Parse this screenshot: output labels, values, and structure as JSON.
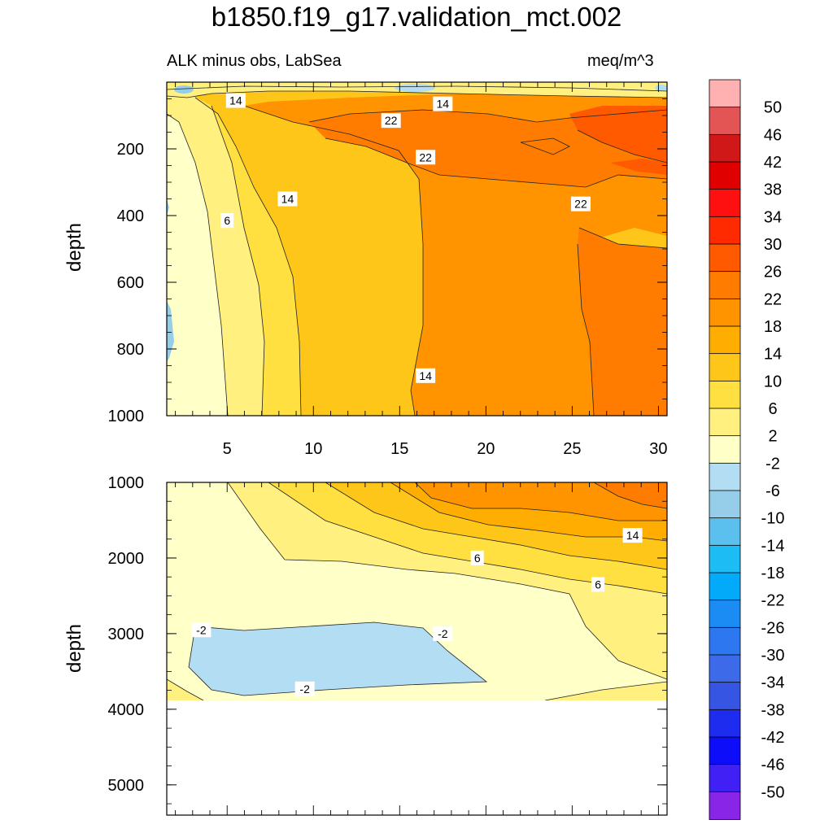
{
  "title": "b1850.f19_g17.validation_mct.002",
  "left_subtitle": "ALK minus obs, LabSea",
  "right_subtitle": "meq/m^3",
  "chart_data": [
    {
      "type": "contour",
      "panel": "upper",
      "xlabel": "",
      "ylabel": "depth",
      "xlim": [
        1.5,
        30.5
      ],
      "ylim": [
        1000,
        0
      ],
      "x_ticks": [
        5,
        10,
        15,
        20,
        25,
        30
      ],
      "y_ticks": [
        200,
        400,
        600,
        800,
        1000
      ],
      "contour_labels": [
        {
          "text": "14",
          "x": 5.5,
          "y": 55
        },
        {
          "text": "14",
          "x": 17.5,
          "y": 65
        },
        {
          "text": "22",
          "x": 14.5,
          "y": 115
        },
        {
          "text": "22",
          "x": 16.5,
          "y": 225
        },
        {
          "text": "22",
          "x": 25.5,
          "y": 365
        },
        {
          "text": "14",
          "x": 8.5,
          "y": 350
        },
        {
          "text": "6",
          "x": 5.0,
          "y": 415
        },
        {
          "text": "14",
          "x": 16.5,
          "y": 880
        }
      ]
    },
    {
      "type": "contour",
      "panel": "lower",
      "xlabel": "",
      "ylabel": "depth",
      "xlim": [
        1.5,
        30.5
      ],
      "ylim": [
        5400,
        1000
      ],
      "y_ticks": [
        1000,
        2000,
        3000,
        4000,
        5000
      ],
      "contour_labels": [
        {
          "text": "14",
          "x": 28.5,
          "y": 1700
        },
        {
          "text": "6",
          "x": 19.5,
          "y": 2000
        },
        {
          "text": "6",
          "x": 26.5,
          "y": 2350
        },
        {
          "text": "-2",
          "x": 3.5,
          "y": 2950
        },
        {
          "text": "-2",
          "x": 17.5,
          "y": 3000
        },
        {
          "text": "-2",
          "x": 9.5,
          "y": 3730
        }
      ]
    }
  ],
  "colorbar": {
    "labels": [
      "50",
      "46",
      "42",
      "38",
      "34",
      "30",
      "26",
      "22",
      "18",
      "14",
      "10",
      "6",
      "2",
      "-2",
      "-6",
      "-10",
      "-14",
      "-18",
      "-22",
      "-26",
      "-30",
      "-34",
      "-38",
      "-42",
      "-46",
      "-50"
    ],
    "colors": [
      "#ffb0b0",
      "#e35555",
      "#d01818",
      "#e00000",
      "#ff1010",
      "#ff2a00",
      "#ff5a00",
      "#ff7c00",
      "#ff9400",
      "#ffad00",
      "#ffc61a",
      "#ffe040",
      "#fff080",
      "#ffffc8",
      "#b3ddf2",
      "#96cde8",
      "#5cc0ef",
      "#1ebcf5",
      "#03aaf9",
      "#1c8cf5",
      "#2d78f0",
      "#3c6ae8",
      "#3555e2",
      "#1e2cf0",
      "#0d0dfa",
      "#4020f5",
      "#8825e6"
    ]
  }
}
